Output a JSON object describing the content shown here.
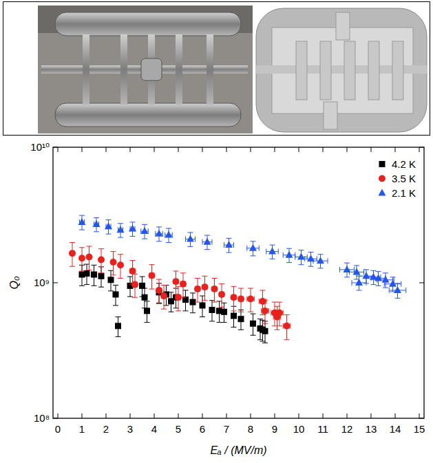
{
  "chart_data": {
    "type": "scatter",
    "x_label": "Eₐ / (MV/m)",
    "y_label": "Q₀",
    "log": "y",
    "legend": "top-right",
    "xlim": [
      -0.2,
      15.2
    ],
    "ylim": [
      100000000,
      10000000000
    ],
    "xticks": [
      0,
      1,
      2,
      3,
      4,
      5,
      6,
      7,
      8,
      9,
      10,
      11,
      12,
      13,
      14,
      15
    ],
    "yticks": [
      {
        "value": 100000000,
        "label": "10⁸"
      },
      {
        "value": 1000000000,
        "label": "10⁹"
      },
      {
        "value": 10000000000,
        "label": "10¹⁰"
      }
    ],
    "series": [
      {
        "name": "4.2 K",
        "color": "#000000",
        "marker": "square",
        "x": [
          1.0,
          1.2,
          1.5,
          1.8,
          2.2,
          2.4,
          2.5,
          3.0,
          3.5,
          3.6,
          3.7,
          4.2,
          4.5,
          4.7,
          4.9,
          5.3,
          5.6,
          6.0,
          6.4,
          6.7,
          6.9,
          7.3,
          7.6,
          8.1,
          8.4,
          8.5,
          8.6
        ],
        "values": [
          1150000000.0,
          1170000000.0,
          1150000000.0,
          1120000000.0,
          1050000000.0,
          820000000.0,
          480000000.0,
          950000000.0,
          950000000.0,
          780000000.0,
          620000000.0,
          850000000.0,
          820000000.0,
          730000000.0,
          780000000.0,
          750000000.0,
          720000000.0,
          680000000.0,
          630000000.0,
          620000000.0,
          610000000.0,
          570000000.0,
          540000000.0,
          500000000.0,
          460000000.0,
          450000000.0,
          440000000.0
        ],
        "errors": [
          200000000.0,
          200000000.0,
          200000000.0,
          190000000.0,
          180000000.0,
          140000000.0,
          80000000.0,
          160000000.0,
          160000000.0,
          130000000.0,
          110000000.0,
          140000000.0,
          140000000.0,
          120000000.0,
          130000000.0,
          130000000.0,
          120000000.0,
          120000000.0,
          110000000.0,
          110000000.0,
          100000000.0,
          100000000.0,
          90000000.0,
          90000000.0,
          80000000.0,
          80000000.0,
          80000000.0
        ],
        "x_errors": [
          0.05,
          0.05,
          0.05,
          0.05,
          0.05,
          0.05,
          0.05,
          0.05,
          0.05,
          0.05,
          0.1,
          0.1,
          0.1,
          0.1,
          0.1,
          0.1,
          0.1,
          0.1,
          0.1,
          0.1,
          0.1,
          0.1,
          0.1,
          0.1,
          0.1,
          0.1,
          0.1
        ]
      },
      {
        "name": "3.5 K",
        "color": "#e8211d",
        "marker": "circle",
        "x": [
          0.6,
          1.0,
          1.3,
          1.8,
          2.3,
          2.6,
          3.1,
          3.2,
          3.9,
          4.2,
          4.4,
          4.9,
          5.0,
          5.2,
          5.8,
          6.1,
          6.5,
          6.8,
          7.3,
          7.6,
          8.0,
          8.5,
          8.6,
          9.0,
          9.1,
          9.2,
          9.5
        ],
        "values": [
          1650000000.0,
          1520000000.0,
          1550000000.0,
          1480000000.0,
          1420000000.0,
          1350000000.0,
          1220000000.0,
          970000000.0,
          1130000000.0,
          880000000.0,
          800000000.0,
          1020000000.0,
          780000000.0,
          980000000.0,
          900000000.0,
          930000000.0,
          900000000.0,
          820000000.0,
          780000000.0,
          760000000.0,
          760000000.0,
          730000000.0,
          620000000.0,
          600000000.0,
          560000000.0,
          600000000.0,
          480000000.0
        ],
        "errors": [
          330000000.0,
          300000000.0,
          310000000.0,
          300000000.0,
          280000000.0,
          270000000.0,
          240000000.0,
          190000000.0,
          230000000.0,
          180000000.0,
          160000000.0,
          200000000.0,
          160000000.0,
          200000000.0,
          180000000.0,
          190000000.0,
          180000000.0,
          160000000.0,
          160000000.0,
          150000000.0,
          150000000.0,
          150000000.0,
          120000000.0,
          120000000.0,
          110000000.0,
          120000000.0,
          100000000.0
        ],
        "x_errors": [
          0.05,
          0.05,
          0.05,
          0.05,
          0.05,
          0.05,
          0.1,
          0.1,
          0.1,
          0.1,
          0.1,
          0.1,
          0.1,
          0.1,
          0.1,
          0.1,
          0.1,
          0.1,
          0.1,
          0.1,
          0.15,
          0.15,
          0.15,
          0.15,
          0.15,
          0.15,
          0.15
        ]
      },
      {
        "name": "2.1 K",
        "color": "#2456e8",
        "marker": "triangle",
        "x": [
          1.0,
          1.6,
          2.1,
          2.6,
          3.1,
          3.6,
          4.2,
          4.6,
          5.5,
          6.2,
          7.1,
          8.1,
          8.9,
          9.6,
          10.1,
          10.5,
          10.9,
          12.0,
          12.4,
          12.5,
          12.8,
          13.1,
          13.3,
          13.6,
          13.9,
          14.1
        ],
        "values": [
          2800000000.0,
          2700000000.0,
          2600000000.0,
          2450000000.0,
          2500000000.0,
          2400000000.0,
          2300000000.0,
          2250000000.0,
          2100000000.0,
          2000000000.0,
          1900000000.0,
          1800000000.0,
          1700000000.0,
          1600000000.0,
          1550000000.0,
          1500000000.0,
          1450000000.0,
          1250000000.0,
          1200000000.0,
          1000000000.0,
          1120000000.0,
          1100000000.0,
          1080000000.0,
          1050000000.0,
          980000000.0,
          880000000.0
        ],
        "errors": [
          340000000.0,
          320000000.0,
          310000000.0,
          290000000.0,
          300000000.0,
          290000000.0,
          280000000.0,
          270000000.0,
          250000000.0,
          240000000.0,
          230000000.0,
          220000000.0,
          200000000.0,
          190000000.0,
          190000000.0,
          180000000.0,
          170000000.0,
          150000000.0,
          140000000.0,
          120000000.0,
          130000000.0,
          130000000.0,
          130000000.0,
          130000000.0,
          120000000.0,
          110000000.0
        ],
        "x_errors": [
          0.1,
          0.1,
          0.1,
          0.1,
          0.1,
          0.15,
          0.15,
          0.15,
          0.2,
          0.2,
          0.2,
          0.25,
          0.25,
          0.25,
          0.25,
          0.25,
          0.3,
          0.3,
          0.3,
          0.3,
          0.3,
          0.3,
          0.3,
          0.35,
          0.35,
          0.35
        ]
      }
    ]
  }
}
